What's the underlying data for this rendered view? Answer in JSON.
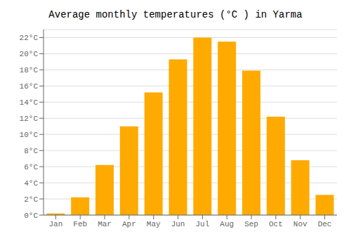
{
  "chart_data": {
    "type": "bar",
    "title": "Average monthly temperatures (°C ) in Yarma",
    "categories": [
      "Jan",
      "Feb",
      "Mar",
      "Apr",
      "May",
      "Jun",
      "Jul",
      "Aug",
      "Sep",
      "Oct",
      "Nov",
      "Dec"
    ],
    "values": [
      0.2,
      2.2,
      6.2,
      11.0,
      15.2,
      19.3,
      22.0,
      21.5,
      17.9,
      12.2,
      6.8,
      2.5
    ],
    "color": "#FFAA00",
    "ylim": [
      0,
      23
    ],
    "yticks": [
      {
        "value": 0,
        "label": "0°C"
      },
      {
        "value": 2,
        "label": "2°C"
      },
      {
        "value": 4,
        "label": "4°C"
      },
      {
        "value": 6,
        "label": "6°C"
      },
      {
        "value": 8,
        "label": "8°C"
      },
      {
        "value": 10,
        "label": "10°C"
      },
      {
        "value": 12,
        "label": "12°C"
      },
      {
        "value": 14,
        "label": "14°C"
      },
      {
        "value": 16,
        "label": "16°C"
      },
      {
        "value": 18,
        "label": "18°C"
      },
      {
        "value": 20,
        "label": "20°C"
      },
      {
        "value": 22,
        "label": "22°C"
      }
    ],
    "grid": true
  }
}
